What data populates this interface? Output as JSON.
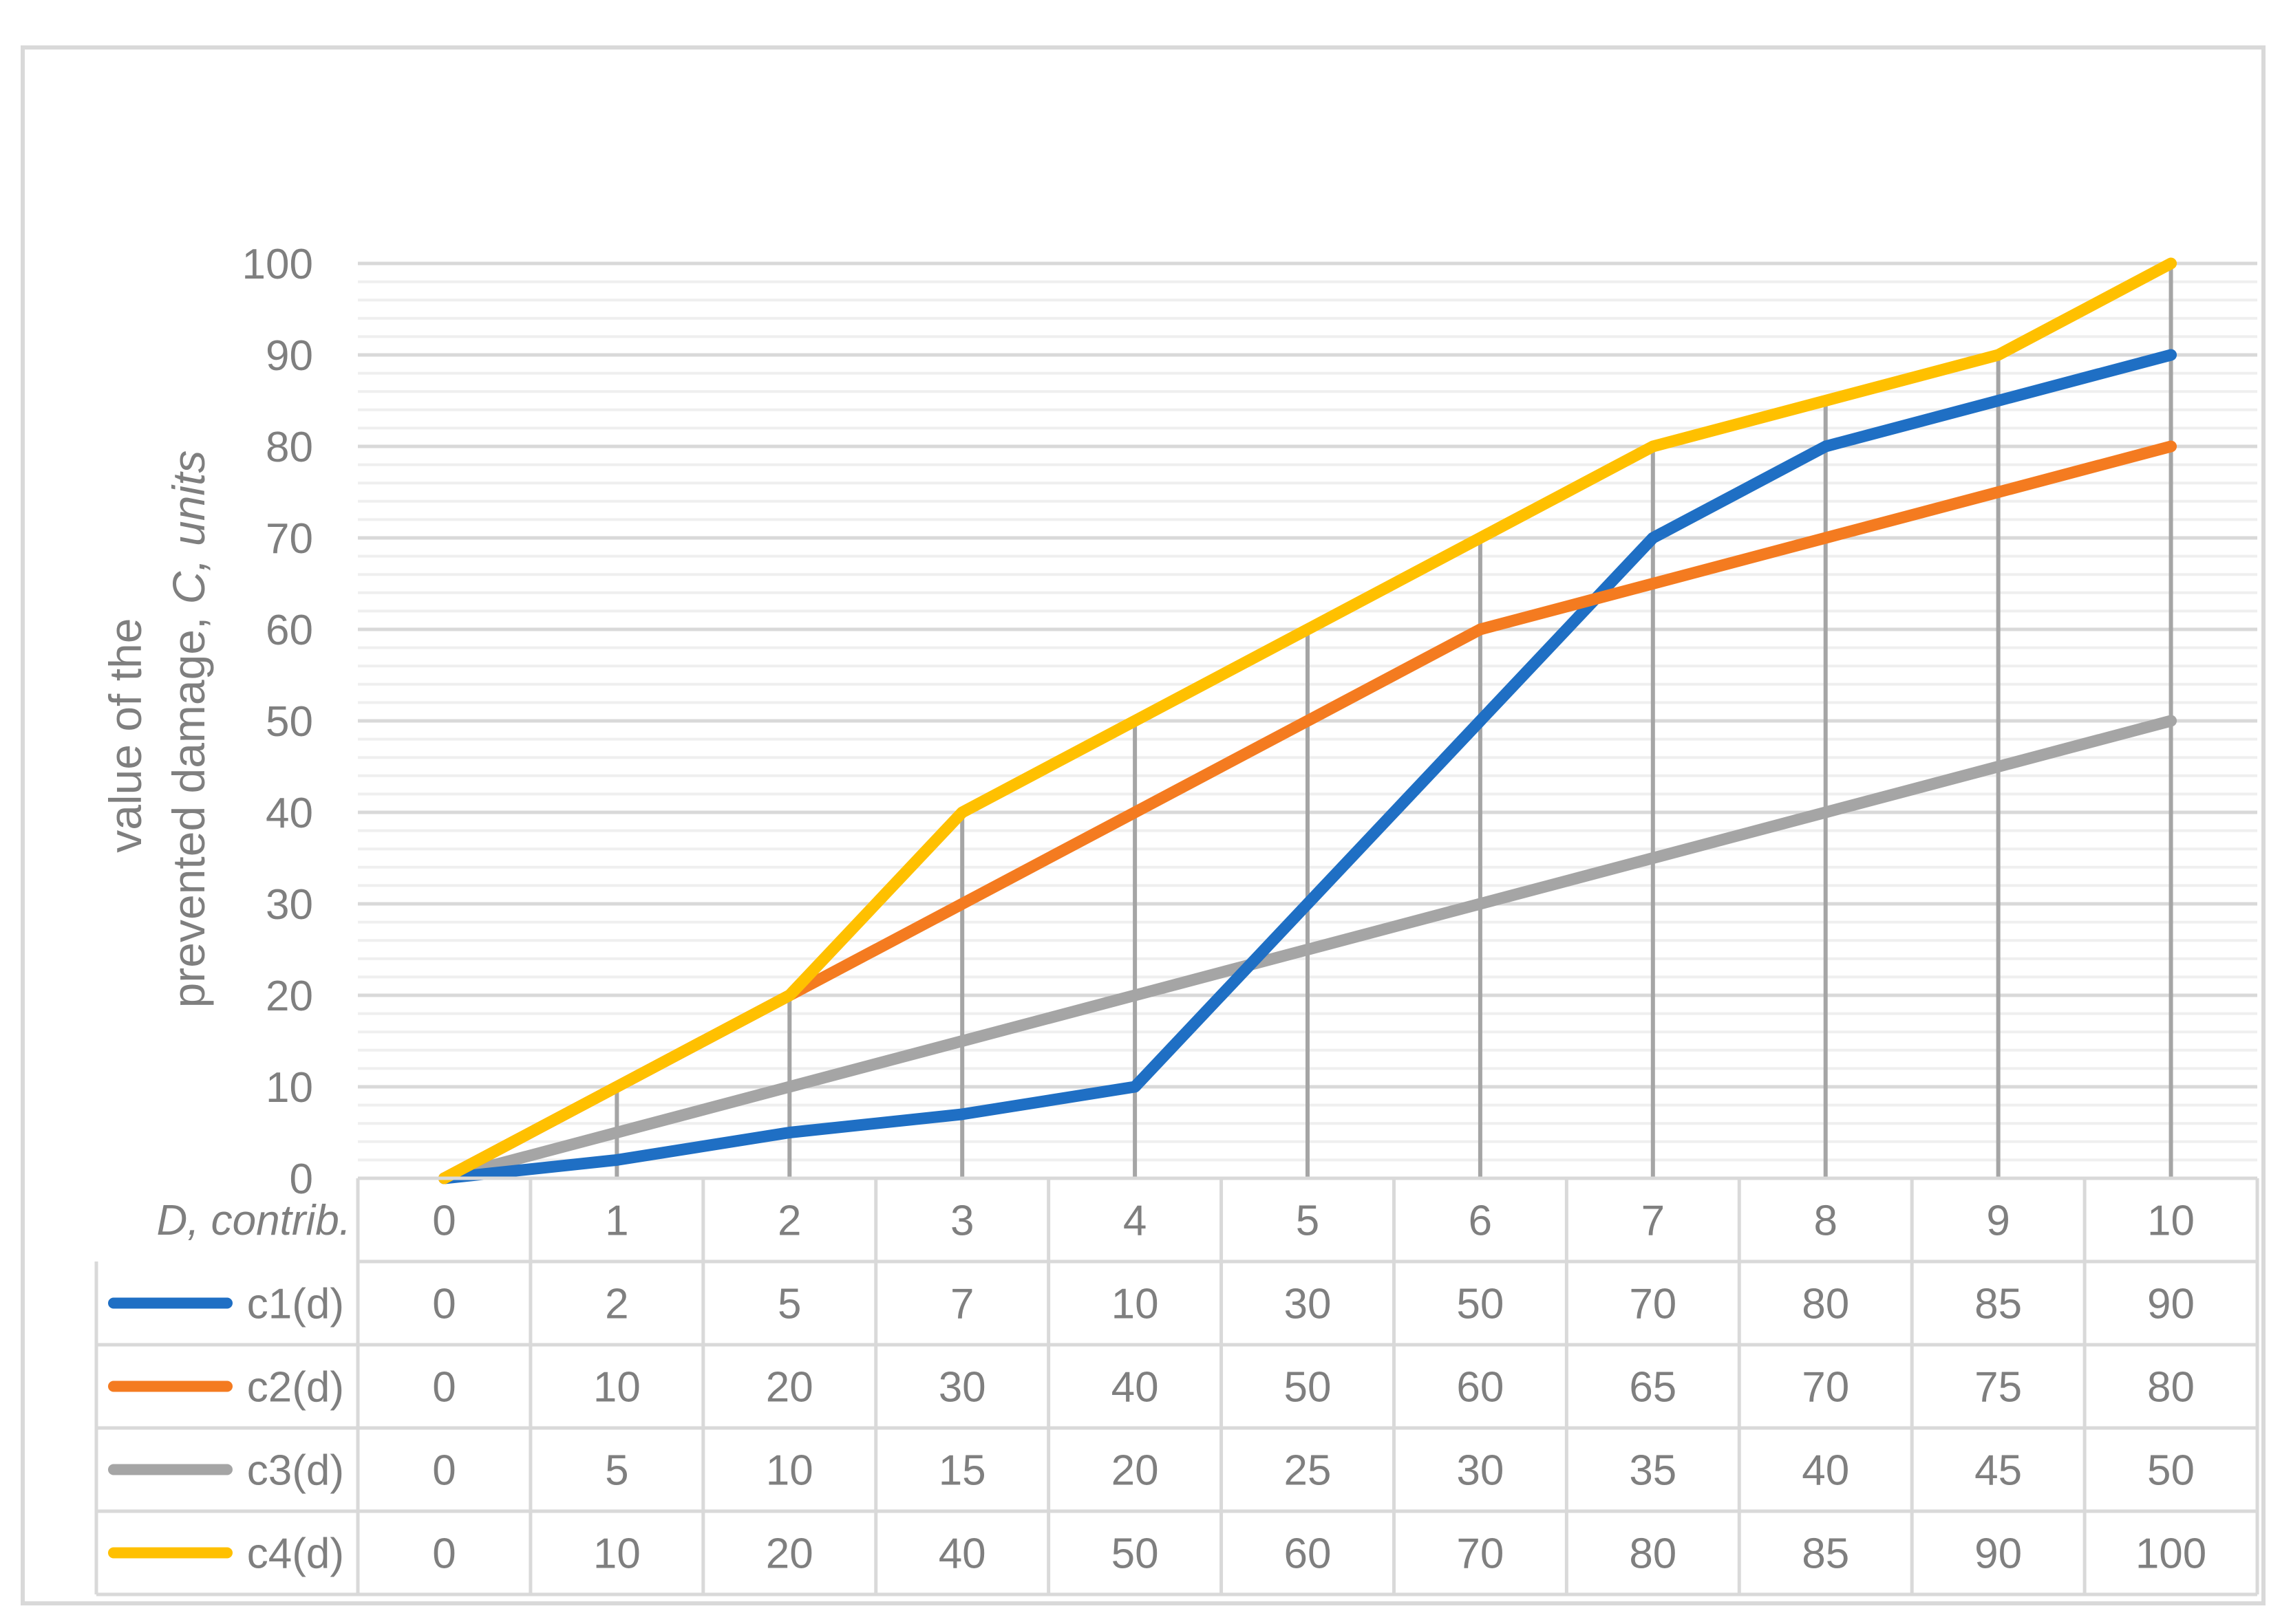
{
  "chart_data": {
    "type": "line",
    "ylabel": {
      "line1": "value of the",
      "line2_plain": "prevented damage, ",
      "line2_italic": "C, units"
    },
    "xlabel": "D, contrib.",
    "categories": [
      "0",
      "1",
      "2",
      "3",
      "4",
      "5",
      "6",
      "7",
      "8",
      "9",
      "10"
    ],
    "ylim": [
      0,
      100
    ],
    "yticks": [
      0,
      10,
      20,
      30,
      40,
      50,
      60,
      70,
      80,
      90,
      100
    ],
    "grid": "horizontal major + minor, vertical drop lines",
    "legend": "data table below plot",
    "series": [
      {
        "name": "c1(d)",
        "color": "#1f6fc4",
        "values": [
          0,
          2,
          5,
          7,
          10,
          30,
          50,
          70,
          80,
          85,
          90
        ]
      },
      {
        "name": "c2(d)",
        "color": "#f47b20",
        "values": [
          0,
          10,
          20,
          30,
          40,
          50,
          60,
          65,
          70,
          75,
          80
        ]
      },
      {
        "name": "c3(d)",
        "color": "#a5a5a5",
        "values": [
          0,
          5,
          10,
          15,
          20,
          25,
          30,
          35,
          40,
          45,
          50
        ]
      },
      {
        "name": "c4(d)",
        "color": "#ffc000",
        "values": [
          0,
          10,
          20,
          40,
          50,
          60,
          70,
          80,
          85,
          90,
          100
        ]
      }
    ]
  }
}
